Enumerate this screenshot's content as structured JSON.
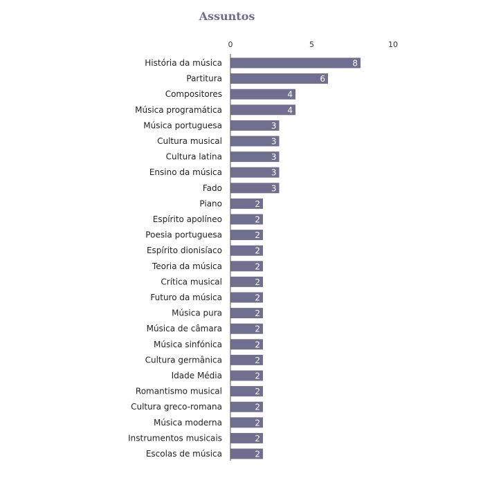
{
  "chart_data": {
    "type": "bar",
    "orientation": "horizontal",
    "title": "Assuntos",
    "xlabel": "",
    "ylabel": "",
    "xlim": [
      0,
      10
    ],
    "ticks": [
      0,
      5,
      10
    ],
    "grid": false,
    "bar_color": "#716f8f",
    "categories": [
      "História da música",
      "Partitura",
      "Compositores",
      "Música programática",
      "Música portuguesa",
      "Cultura musical",
      "Cultura latina",
      "Ensino da música",
      "Fado",
      "Piano",
      "Espírito apolíneo",
      "Poesia portuguesa",
      "Espírito dionisíaco",
      "Teoria da música",
      "Crítica musical",
      "Futuro da música",
      "Música pura",
      "Música de câmara",
      "Música sinfónica",
      "Cultura germânica",
      "Idade Média",
      "Romantismo musical",
      "Cultura greco-romana",
      "Música moderna",
      "Instrumentos musicais",
      "Escolas de música"
    ],
    "values": [
      8,
      6,
      4,
      4,
      3,
      3,
      3,
      3,
      3,
      2,
      2,
      2,
      2,
      2,
      2,
      2,
      2,
      2,
      2,
      2,
      2,
      2,
      2,
      2,
      2,
      2
    ]
  }
}
